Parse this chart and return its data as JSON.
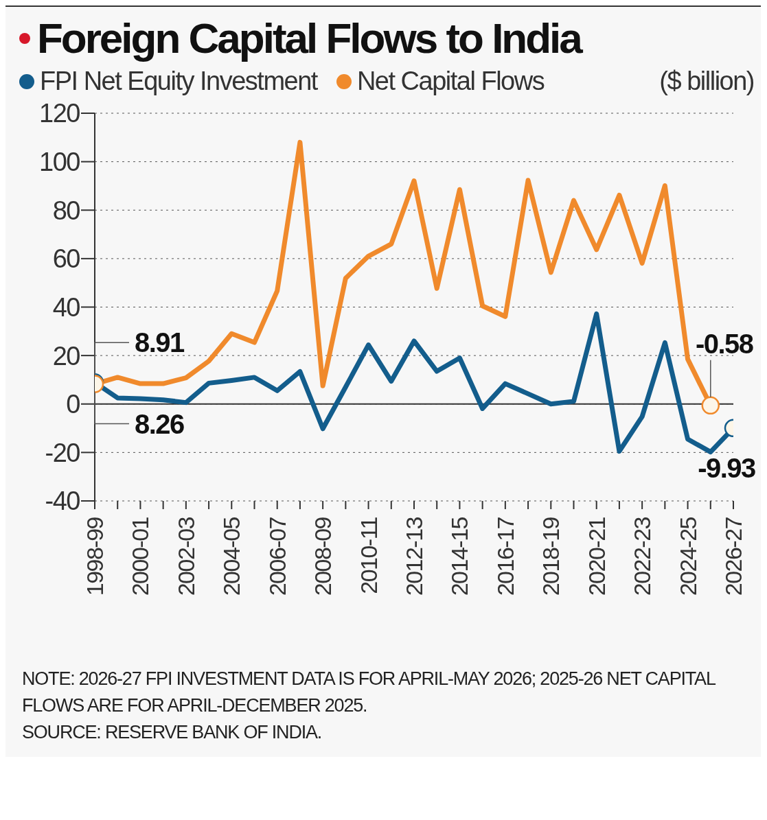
{
  "chart_data": {
    "type": "line",
    "title": "Foreign Capital Flows to India",
    "ylabel": "($ billion)",
    "categories": [
      "1998-99",
      null,
      "2000-01",
      null,
      "2002-03",
      null,
      "2004-05",
      null,
      "2006-07",
      null,
      "2008-09",
      null,
      "2010-11",
      null,
      "2012-13",
      null,
      "2014-15",
      null,
      "2016-17",
      null,
      "2018-19",
      null,
      "2020-21",
      null,
      "2022-23",
      null,
      "2024-25",
      null,
      "2026-27"
    ],
    "series": [
      {
        "name": "FPI Net Equity Investment",
        "color": "#135d8c",
        "values": [
          8.91,
          2.5,
          2.2,
          1.7,
          0.6,
          8.6,
          9.7,
          11,
          5.5,
          13.4,
          -10.2,
          7,
          24.4,
          9.4,
          26,
          13.5,
          19,
          -1.9,
          8.4,
          4.2,
          0,
          1.1,
          37.2,
          -19.5,
          -5.2,
          25.3,
          -14.5,
          -19.8,
          -9.93
        ],
        "value_labels": [
          "8.91",
          null,
          null,
          null,
          null,
          null,
          null,
          null,
          null,
          null,
          null,
          null,
          null,
          null,
          null,
          null,
          null,
          null,
          null,
          null,
          null,
          null,
          null,
          null,
          null,
          null,
          null,
          null,
          "-9.93"
        ]
      },
      {
        "name": "Net Capital Flows",
        "color": "#f08a2c",
        "values": [
          8.26,
          11,
          8.4,
          8.4,
          10.8,
          17.7,
          29,
          25.4,
          46.7,
          108,
          7.5,
          51.9,
          61,
          66,
          92.1,
          47.7,
          88.5,
          40.5,
          36.1,
          92.3,
          54.3,
          84,
          63.7,
          86.2,
          58.1,
          90.1,
          18.5,
          -0.58,
          null
        ],
        "value_labels": [
          "8.26",
          null,
          null,
          null,
          null,
          null,
          null,
          null,
          null,
          null,
          null,
          null,
          null,
          null,
          null,
          null,
          null,
          null,
          null,
          null,
          null,
          null,
          null,
          null,
          null,
          null,
          null,
          "-0.58",
          null
        ]
      }
    ],
    "ylim": [
      -40,
      120
    ],
    "yticks": [
      -40,
      -20,
      0,
      20,
      40,
      60,
      80,
      100,
      120
    ],
    "grid": "y",
    "legend": "top left",
    "line_style": "solid",
    "ref_lines": [
      {
        "axis": "y",
        "value": 0,
        "color": "#333333"
      }
    ],
    "annotations": [
      "NOTE: 2026-27 FPI INVESTMENT DATA IS FOR APRIL-MAY 2026; 2025-26 NET CAPITAL FLOWS ARE FOR APRIL-DECEMBER 2025.",
      "SOURCE: RESERVE BANK OF INDIA."
    ]
  }
}
